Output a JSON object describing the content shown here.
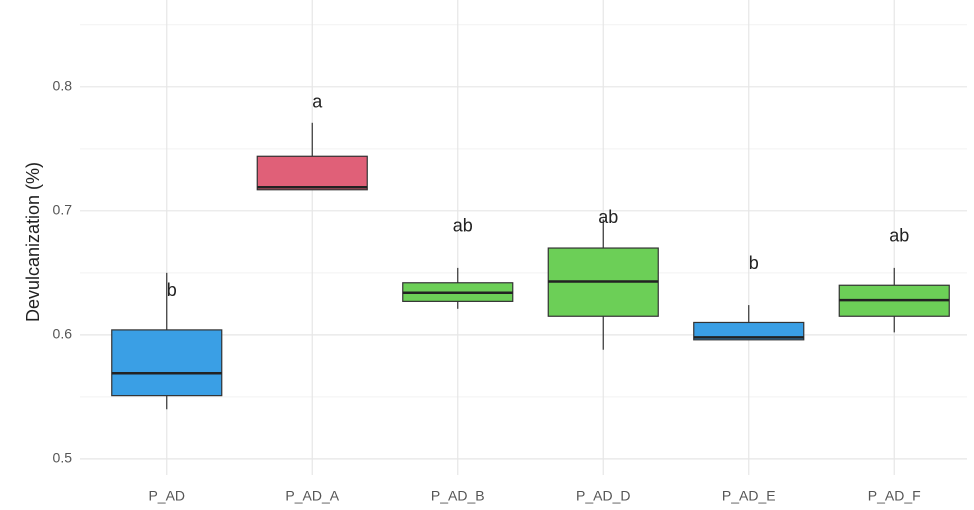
{
  "chart_data": {
    "type": "box",
    "ylabel": "Devulcanization (%)",
    "categories": [
      "P_AD",
      "P_AD_A",
      "P_AD_B",
      "P_AD_D",
      "P_AD_E",
      "P_AD_F"
    ],
    "boxes": [
      {
        "min": 0.54,
        "q1": 0.551,
        "median": 0.569,
        "q3": 0.604,
        "max": 0.65
      },
      {
        "min": 0.717,
        "q1": 0.717,
        "median": 0.719,
        "q3": 0.744,
        "max": 0.771
      },
      {
        "min": 0.621,
        "q1": 0.627,
        "median": 0.634,
        "q3": 0.642,
        "max": 0.654
      },
      {
        "min": 0.588,
        "q1": 0.615,
        "median": 0.643,
        "q3": 0.67,
        "max": 0.693
      },
      {
        "min": 0.596,
        "q1": 0.596,
        "median": 0.598,
        "q3": 0.61,
        "max": 0.624
      },
      {
        "min": 0.602,
        "q1": 0.615,
        "median": 0.628,
        "q3": 0.64,
        "max": 0.654
      }
    ],
    "colors": [
      "#3a9fe5",
      "#e06078",
      "#6ccf57",
      "#6ccf57",
      "#3a9fe5",
      "#6ccf57"
    ],
    "annotations": [
      {
        "text": "b",
        "y": 0.635
      },
      {
        "text": "a",
        "y": 0.787
      },
      {
        "text": "ab",
        "y": 0.687
      },
      {
        "text": "ab",
        "y": 0.694
      },
      {
        "text": "b",
        "y": 0.657
      },
      {
        "text": "ab",
        "y": 0.679
      }
    ],
    "ylim": [
      0.487,
      0.87
    ],
    "yticks": [
      0.5,
      0.6,
      0.7,
      0.8
    ],
    "yticks_minor": [
      0.55,
      0.65,
      0.75,
      0.85
    ],
    "grid": true
  }
}
